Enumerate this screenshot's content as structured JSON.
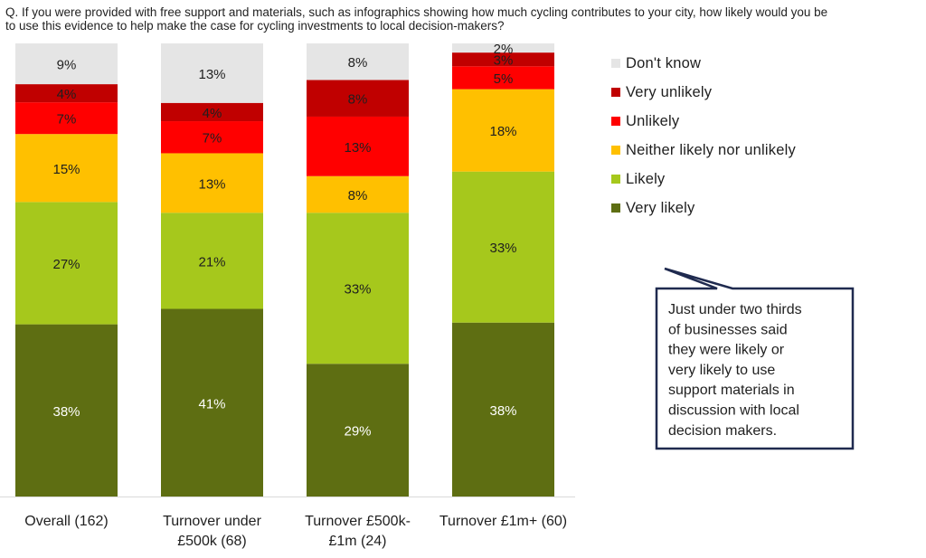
{
  "question": {
    "line1": "Q. If you were provided with free support and materials, such as infographics showing how much cycling contributes to your city, how likely would you be",
    "line2": "to use this evidence to help make the case for cycling investments to local decision-makers?"
  },
  "colors": {
    "Don't know": "#e5e5e5",
    "Very unlikely": "#c00000",
    "Unlikely": "#ff0000",
    "Neither likely nor unlikely": "#ffc000",
    "Likely": "#a6c81c",
    "Very likely": "#5e6e12"
  },
  "chart_data": {
    "type": "bar",
    "stacked": true,
    "title": "Q. If you were provided with free support and materials, such as infographics showing how much cycling contributes to your city, how likely would you be to use this evidence to help make the case for cycling investments to local decision-makers?",
    "categories": [
      [
        "Overall (162)"
      ],
      [
        "Turnover under",
        "£500k (68)"
      ],
      [
        "Turnover £500k-",
        "£1m (24)"
      ],
      [
        "Turnover £1m+ (60)"
      ]
    ],
    "series": [
      {
        "name": "Very likely",
        "values": [
          38,
          41,
          29,
          38
        ]
      },
      {
        "name": "Likely",
        "values": [
          27,
          21,
          33,
          33
        ]
      },
      {
        "name": "Neither likely nor unlikely",
        "values": [
          15,
          13,
          8,
          18
        ]
      },
      {
        "name": "Unlikely",
        "values": [
          7,
          7,
          13,
          5
        ]
      },
      {
        "name": "Very unlikely",
        "values": [
          4,
          4,
          8,
          3
        ]
      },
      {
        "name": "Don't know",
        "values": [
          9,
          13,
          8,
          2
        ]
      }
    ],
    "legend_order": [
      "Don't know",
      "Very unlikely",
      "Unlikely",
      "Neither likely nor unlikely",
      "Likely",
      "Very likely"
    ],
    "ylim": [
      0,
      100
    ],
    "unit": "%",
    "legend": "right",
    "annotation": [
      "Just under two thirds",
      "of businesses said",
      "they were likely or",
      "very likely to use",
      "support materials in",
      "discussion with local",
      "decision makers."
    ]
  }
}
